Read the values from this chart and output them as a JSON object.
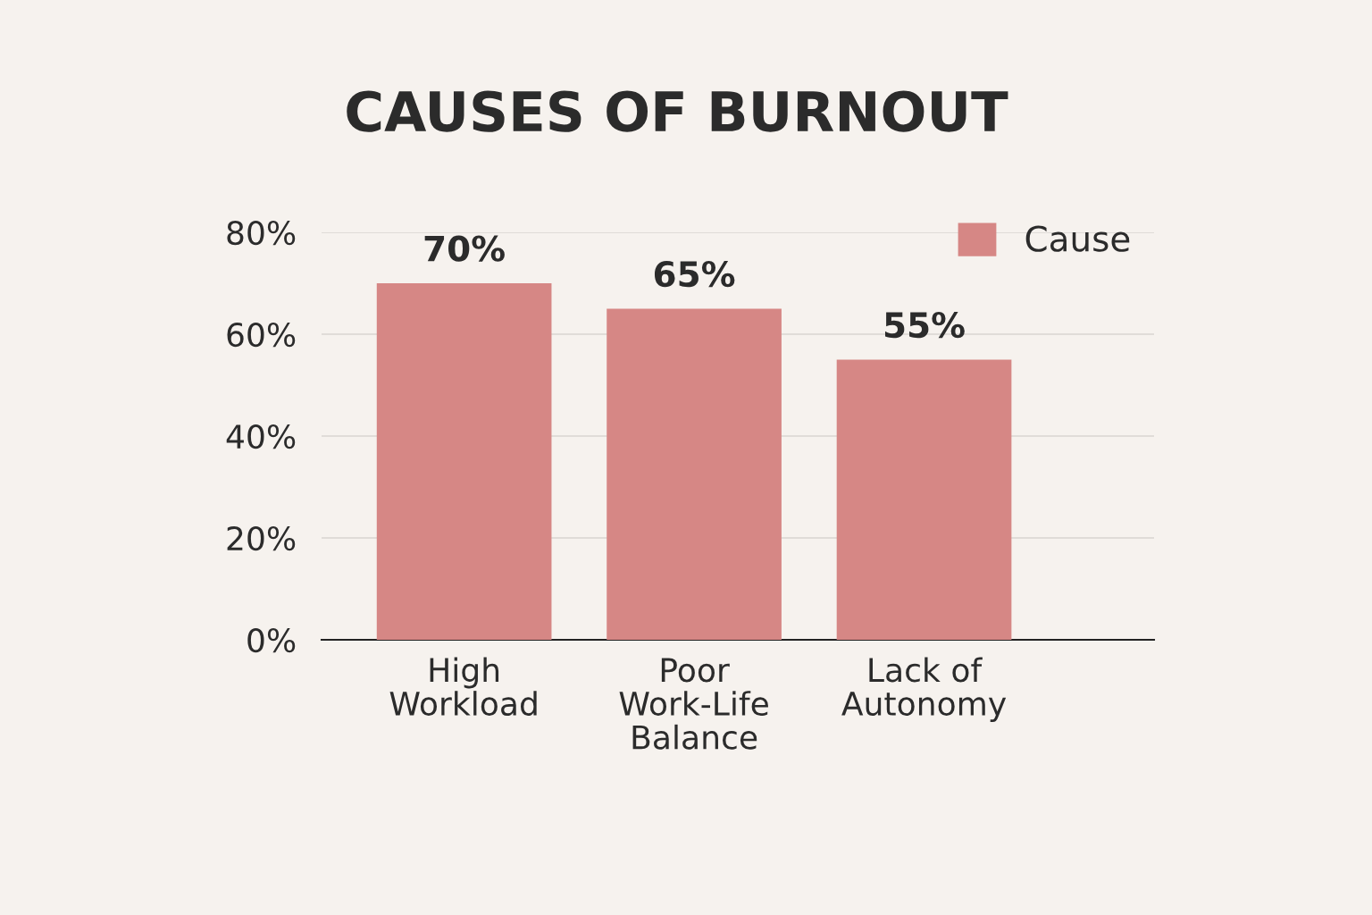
{
  "chart_data": {
    "type": "bar",
    "title": "CAUSES OF BURNOUT",
    "categories": [
      "High\nWorkload",
      "Poor\nWork-Life\nBalance",
      "Lack of\nAutonomy"
    ],
    "series": [
      {
        "name": "Cause",
        "color": "#d68785",
        "values": [
          70,
          65,
          55
        ]
      }
    ],
    "value_labels": [
      "70%",
      "65%",
      "55%"
    ],
    "ylim": [
      0,
      80
    ],
    "yticks": [
      {
        "value": 0,
        "label": "0%"
      },
      {
        "value": 20,
        "label": "20%"
      },
      {
        "value": 40,
        "label": "40%"
      },
      {
        "value": 60,
        "label": "60%"
      },
      {
        "value": 80,
        "label": "80%"
      }
    ],
    "grid": "y",
    "legend": "top right"
  }
}
